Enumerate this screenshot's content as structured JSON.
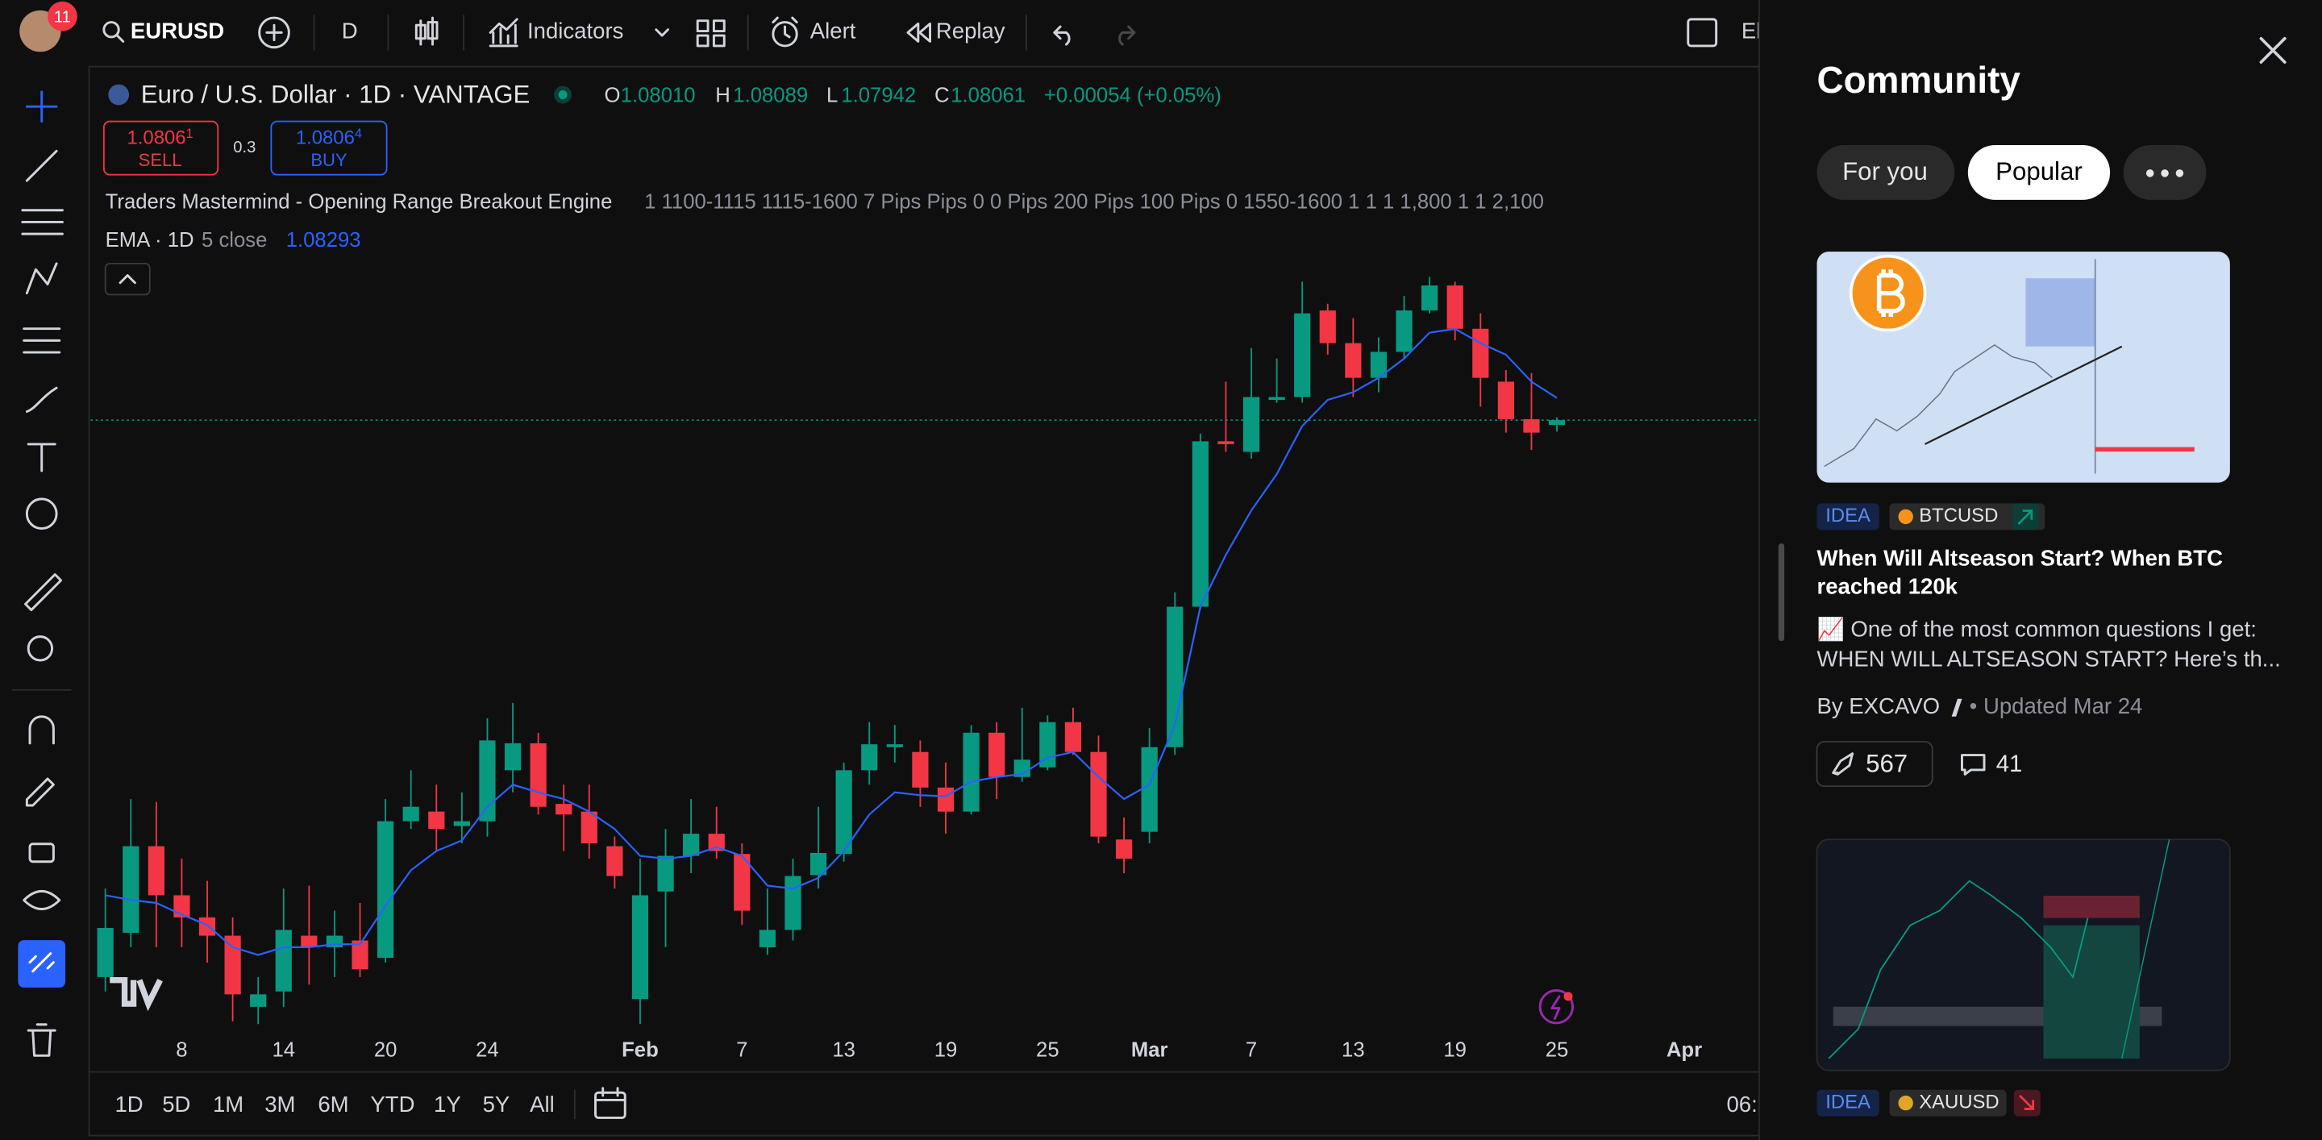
{
  "top_toolbar": {
    "avatar_badge": "11",
    "symbol": "EURUSD",
    "interval": "D",
    "indicators": "Indicators",
    "alert": "Alert",
    "replay": "Replay",
    "clipped_label": "El"
  },
  "legend": {
    "title": "Euro / U.S. Dollar · 1D · VANTAGE",
    "ohlc": [
      {
        "key": "O",
        "value": "1.08010"
      },
      {
        "key": "H",
        "value": "1.08089"
      },
      {
        "key": "L",
        "value": "1.07942"
      },
      {
        "key": "C",
        "value": "1.08061"
      }
    ],
    "change": "+0.00054 (+0.05%)",
    "sell_price": "1.0806",
    "sell_price_sup": "1",
    "sell": "SELL",
    "spread": "0.3",
    "buy_price": "1.0806",
    "buy_price_sup": "4",
    "buy": "BUY",
    "indicator_name": "Traders Mastermind - Opening Range Breakout Engine",
    "indicator_params": "1 1100-1115 1115-1600 7 Pips Pips 0 0 Pips 200 Pips 100 Pips 0 1550-1600 1 1 1 1,800 1 1 2,100",
    "ema_name": "EMA · 1D",
    "ema_params": "5 close",
    "ema_value": "1.08293"
  },
  "chart": {
    "type": "candlestick",
    "categories": [
      null,
      null,
      null,
      "8",
      null,
      null,
      null,
      "14",
      null,
      null,
      null,
      "20",
      null,
      null,
      null,
      "24",
      null,
      null,
      null,
      null,
      null,
      "Feb",
      null,
      null,
      null,
      "7",
      null,
      null,
      null,
      "13",
      null,
      null,
      null,
      "19",
      null,
      null,
      null,
      "25",
      null,
      null,
      null,
      "Mar",
      null,
      null,
      null,
      "7",
      null,
      null,
      null,
      "13",
      null,
      null,
      null,
      "19",
      null,
      null,
      null,
      "25",
      null,
      null,
      null,
      null,
      "Apr"
    ],
    "open": [
      1.0227,
      1.0273,
      1.0363,
      1.0312,
      1.0289,
      1.027,
      1.0196,
      1.0212,
      1.027,
      1.0258,
      1.0265,
      1.0247,
      1.0389,
      1.0399,
      1.0384,
      1.0389,
      1.0442,
      1.047,
      1.0407,
      1.0399,
      1.0363,
      1.0204,
      1.0316,
      1.0353,
      1.0376,
      1.0355,
      1.0258,
      1.0276,
      1.0333,
      1.0355,
      1.0442,
      1.0466,
      1.0461,
      1.0424,
      1.0399,
      1.0481,
      1.0435,
      1.0445,
      1.0492,
      1.0461,
      1.037,
      1.0378,
      1.0466,
      1.0612,
      1.0784,
      1.0773,
      1.0827,
      1.083,
      1.092,
      1.0886,
      1.085,
      1.0877,
      1.092,
      1.0946,
      1.0901,
      1.0846,
      1.0807,
      1.0801,
      null,
      null,
      null,
      null,
      null
    ],
    "high": [
      1.0319,
      1.0412,
      1.0409,
      1.035,
      1.0327,
      1.0289,
      1.0227,
      1.0319,
      1.0322,
      1.0296,
      1.0304,
      1.0412,
      1.0442,
      1.0427,
      1.0419,
      1.0496,
      1.0512,
      1.0481,
      1.0427,
      1.0427,
      1.0373,
      1.035,
      1.0381,
      1.0412,
      1.0404,
      1.0366,
      1.0319,
      1.035,
      1.0404,
      1.045,
      1.0492,
      1.0489,
      1.0473,
      1.045,
      1.0489,
      1.0492,
      1.0507,
      1.0499,
      1.0507,
      1.0478,
      1.0393,
      1.0486,
      1.0627,
      1.0792,
      1.0846,
      1.0881,
      1.087,
      1.095,
      1.0927,
      1.0912,
      1.0892,
      1.0935,
      1.0955,
      1.095,
      1.0917,
      1.0858,
      1.0855,
      1.0809,
      null,
      null,
      null,
      null,
      null
    ],
    "low": [
      1.0212,
      1.0258,
      1.0258,
      1.0258,
      1.0242,
      1.0181,
      1.0178,
      1.0196,
      1.0219,
      1.0227,
      1.0227,
      1.0242,
      1.0381,
      1.0358,
      1.0366,
      1.0373,
      1.0419,
      1.0396,
      1.0358,
      1.035,
      1.0319,
      1.0178,
      1.0258,
      1.0335,
      1.035,
      1.0281,
      1.025,
      1.0265,
      1.0319,
      1.0347,
      1.0427,
      1.045,
      1.0404,
      1.0376,
      1.0396,
      1.0412,
      1.043,
      1.0442,
      1.0458,
      1.0366,
      1.0335,
      1.0366,
      1.0458,
      1.0609,
      1.0773,
      1.0766,
      1.0824,
      1.0824,
      1.0874,
      1.083,
      1.0835,
      1.0869,
      1.0917,
      1.0889,
      1.082,
      1.0793,
      1.0775,
      1.0794,
      null,
      null,
      null,
      null,
      null
    ],
    "close": [
      1.0278,
      1.0363,
      1.0312,
      1.0289,
      1.027,
      1.0209,
      1.0209,
      1.0276,
      1.0258,
      1.027,
      1.0235,
      1.0389,
      1.0404,
      1.0381,
      1.0389,
      1.0473,
      1.047,
      1.0404,
      1.0396,
      1.0366,
      1.0332,
      1.0312,
      1.0353,
      1.0376,
      1.0358,
      1.0296,
      1.0276,
      1.0332,
      1.0356,
      1.0442,
      1.0469,
      1.0469,
      1.0424,
      1.0399,
      1.0481,
      1.0435,
      1.0453,
      1.0492,
      1.0461,
      1.0373,
      1.035,
      1.0466,
      1.0612,
      1.0784,
      1.0781,
      1.083,
      1.083,
      1.0917,
      1.0886,
      1.085,
      1.0877,
      1.092,
      1.0946,
      1.0901,
      1.085,
      1.0807,
      1.0793,
      1.0806,
      null,
      null,
      null,
      null,
      null
    ],
    "ema": [
      1.0312,
      1.0307,
      1.0304,
      1.0292,
      1.0281,
      1.0258,
      1.025,
      1.0258,
      1.0258,
      1.0261,
      1.0261,
      1.0301,
      1.0338,
      1.0358,
      1.0369,
      1.0404,
      1.0427,
      1.0419,
      1.0412,
      1.0399,
      1.0381,
      1.0353,
      1.035,
      1.0353,
      1.0362,
      1.0353,
      1.0322,
      1.0319,
      1.033,
      1.0358,
      1.0396,
      1.0419,
      1.0416,
      1.0415,
      1.043,
      1.0435,
      1.0438,
      1.0455,
      1.0461,
      1.0435,
      1.0412,
      1.0427,
      1.0489,
      1.0612,
      1.0666,
      1.0712,
      1.075,
      1.08,
      1.0827,
      1.0835,
      1.085,
      1.087,
      1.0897,
      1.0901,
      1.0886,
      1.0874,
      1.0846,
      1.0829,
      null,
      null,
      null,
      null,
      null
    ],
    "ylim": [
      1.0173,
      1.1172
    ],
    "up_color": "#089981",
    "down_color": "#f23645",
    "ema_color": "#2962ff",
    "bold_categories": [
      "Feb",
      "Mar",
      "Apr"
    ]
  },
  "timeframes": [
    "1D",
    "5D",
    "1M",
    "3M",
    "6M",
    "YTD",
    "1Y",
    "5Y",
    "All"
  ],
  "time_label": "06:",
  "community": {
    "title": "Community",
    "tabs": [
      "For you",
      "Popular"
    ],
    "posts": [
      {
        "tag": "IDEA",
        "symbol": "BTCUSD",
        "title_lines": [
          "When Will Altseason Start? When BTC",
          "reached 120k"
        ],
        "description_lines": [
          "📈 One of the most common questions I get:",
          "WHEN WILL ALTSEASON START? Here’s th..."
        ],
        "author": "By EXCAVO",
        "updated": "• Updated Mar 24",
        "boosts": "567",
        "comments": "41"
      },
      {
        "tag": "IDEA",
        "symbol": "XAUUSD"
      }
    ]
  }
}
